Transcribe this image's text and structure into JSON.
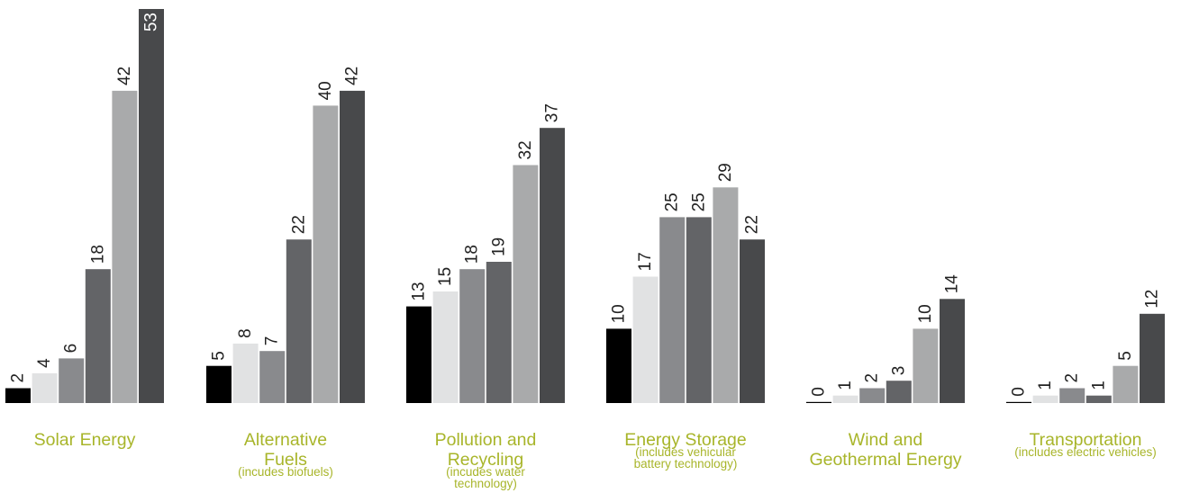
{
  "chart_data": {
    "type": "bar",
    "title": "",
    "xlabel": "",
    "ylabel": "",
    "ylim": [
      0,
      53
    ],
    "grid": false,
    "legend": "none",
    "bar_colors": [
      "#000000",
      "#e1e2e3",
      "#898a8d",
      "#636467",
      "#a9aaab",
      "#48494b"
    ],
    "label_color": "#a8b52a",
    "groups": [
      {
        "lines": [
          "Solar Energy"
        ],
        "sub": [],
        "values": [
          2,
          4,
          6,
          18,
          42,
          53
        ]
      },
      {
        "lines": [
          "Alternative",
          "Fuels"
        ],
        "sub": [
          "(incudes biofuels)"
        ],
        "values": [
          5,
          8,
          7,
          22,
          40,
          42
        ]
      },
      {
        "lines": [
          "Pollution and",
          "Recycling"
        ],
        "sub": [
          "(incudes water",
          "technology)"
        ],
        "values": [
          13,
          15,
          18,
          19,
          32,
          37
        ]
      },
      {
        "lines": [
          "Energy Storage"
        ],
        "sub": [
          "(includes vehicular",
          "battery technology)"
        ],
        "values": [
          10,
          17,
          25,
          25,
          29,
          22
        ]
      },
      {
        "lines": [
          "Wind and",
          "Geothermal Energy"
        ],
        "sub": [],
        "values": [
          0,
          1,
          2,
          3,
          10,
          14
        ]
      },
      {
        "lines": [
          "Transportation"
        ],
        "sub": [
          "(includes electric vehicles)"
        ],
        "values": [
          0,
          1,
          2,
          1,
          5,
          12
        ]
      }
    ]
  }
}
